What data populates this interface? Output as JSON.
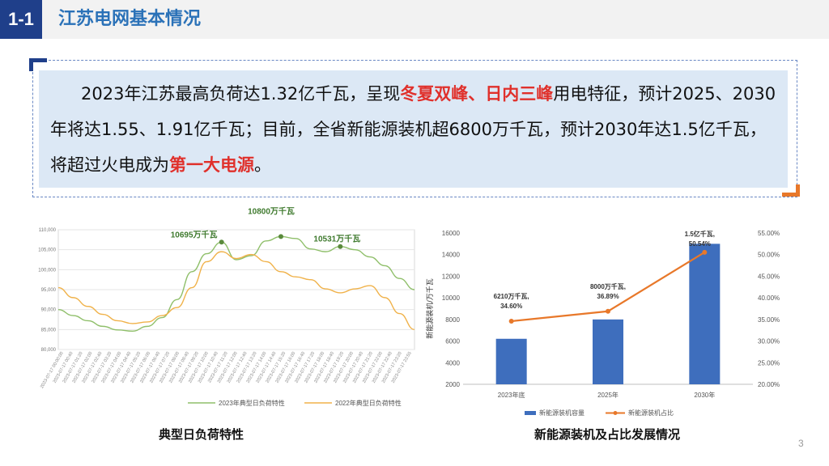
{
  "header": {
    "section_no": "1-1",
    "title": "江苏电网基本情况"
  },
  "summary": {
    "t1": "2023年江苏最高负荷达1.32亿千瓦，呈现",
    "h1": "冬夏双峰",
    "t2": "、",
    "h2": "日内三峰",
    "t3": "用电特征，预计2025、2030年将达1.55、1.91亿千瓦；目前，全省新能源装机超6800万千瓦，预计2030年达1.5亿千瓦，将超过火电成为",
    "h3": "第一大电源",
    "t4": "。"
  },
  "chart_data": [
    {
      "type": "line",
      "caption": "典型日负荷特性",
      "yticks": [
        "80,000",
        "85,000",
        "90,000",
        "95,000",
        "100,000",
        "105,000",
        "110,000"
      ],
      "ylim": [
        80000,
        110000
      ],
      "x": [
        "2023-07-17 00:00",
        "01:00",
        "02:00",
        "03:00",
        "04:00",
        "05:00",
        "06:00",
        "07:00",
        "08:00",
        "09:00",
        "10:00",
        "11:00",
        "12:00",
        "13:00",
        "14:00",
        "15:00",
        "16:00",
        "17:00",
        "18:00",
        "19:00",
        "20:00",
        "21:00",
        "22:00",
        "23:00",
        "23:55"
      ],
      "xticks": [
        "2023-07-17 00:00:00",
        "2023-07-17 00:40",
        "2023-07-17 01:20",
        "2023-07-17 02:00",
        "2023-07-17 02:40",
        "2023-07-17 03:20",
        "2023-07-17 04:00",
        "2023-07-17 04:40",
        "2023-07-17 05:20",
        "2023-07-17 06:00",
        "2023-07-17 06:40",
        "2023-07-17 07:20",
        "2023-07-17 08:00",
        "2023-07-17 08:40",
        "2023-07-17 09:20",
        "2023-07-17 10:00",
        "2023-07-17 10:40",
        "2023-07-17 11:20",
        "2023-07-17 12:00",
        "2023-07-17 12:40",
        "2023-07-17 13:20",
        "2023-07-17 14:00",
        "2023-07-17 14:40",
        "2023-07-17 15:20",
        "2023-07-17 16:00",
        "2023-07-17 16:40",
        "2023-07-17 17:20",
        "2023-07-17 18:00",
        "2023-07-17 18:40",
        "2023-07-17 19:20",
        "2023-07-17 20:00",
        "2023-07-17 20:40",
        "2023-07-17 21:20",
        "2023-07-17 22:00",
        "2023-07-17 22:40",
        "2023-07-17 23:20",
        "2023-07-17 23:55"
      ],
      "series": [
        {
          "name": "2023年典型日负荷特性",
          "color": "#8fbf6a",
          "values": [
            90000,
            88500,
            87200,
            85800,
            84900,
            84600,
            85800,
            88000,
            92500,
            99500,
            104000,
            106900,
            102500,
            103500,
            107200,
            108300,
            107800,
            105200,
            104500,
            105800,
            105000,
            103200,
            101000,
            97800,
            95000
          ]
        },
        {
          "name": "2022年典型日负荷特性",
          "color": "#f0b24a",
          "values": [
            95500,
            93000,
            90800,
            88800,
            87200,
            86500,
            86900,
            88500,
            90500,
            95500,
            102000,
            104500,
            102800,
            103800,
            102000,
            99500,
            98200,
            97500,
            95200,
            94200,
            95200,
            96000,
            93000,
            89000,
            85000
          ]
        }
      ],
      "annotations": [
        "10695万千瓦",
        "10800万千瓦",
        "10531万千瓦"
      ]
    },
    {
      "type": "bar",
      "caption": "新能源装机及占比发展情况",
      "categories": [
        "2023年底",
        "2025年",
        "2030年"
      ],
      "ylabel": "新能源装机/万千瓦",
      "yticks": [
        "2000",
        "4000",
        "6000",
        "8000",
        "10000",
        "12000",
        "14000",
        "16000"
      ],
      "ylim": [
        2000,
        16000
      ],
      "y2ticks": [
        "20.00%",
        "25.00%",
        "30.00%",
        "35.00%",
        "40.00%",
        "45.00%",
        "50.00%",
        "55.00%"
      ],
      "y2lim": [
        20,
        55
      ],
      "series": [
        {
          "name": "新能源装机容量",
          "color": "#3e6ebd",
          "values": [
            6210,
            8000,
            15000
          ]
        },
        {
          "name": "新能源装机占比",
          "color": "#e8782a",
          "values": [
            34.6,
            36.89,
            50.54
          ]
        }
      ],
      "labels": [
        [
          "6210万千瓦,",
          "34.60%"
        ],
        [
          "8000万千瓦,",
          "36.89%"
        ],
        [
          "1.5亿千瓦,",
          "50.54%"
        ]
      ]
    }
  ],
  "page": {
    "number": "3"
  }
}
